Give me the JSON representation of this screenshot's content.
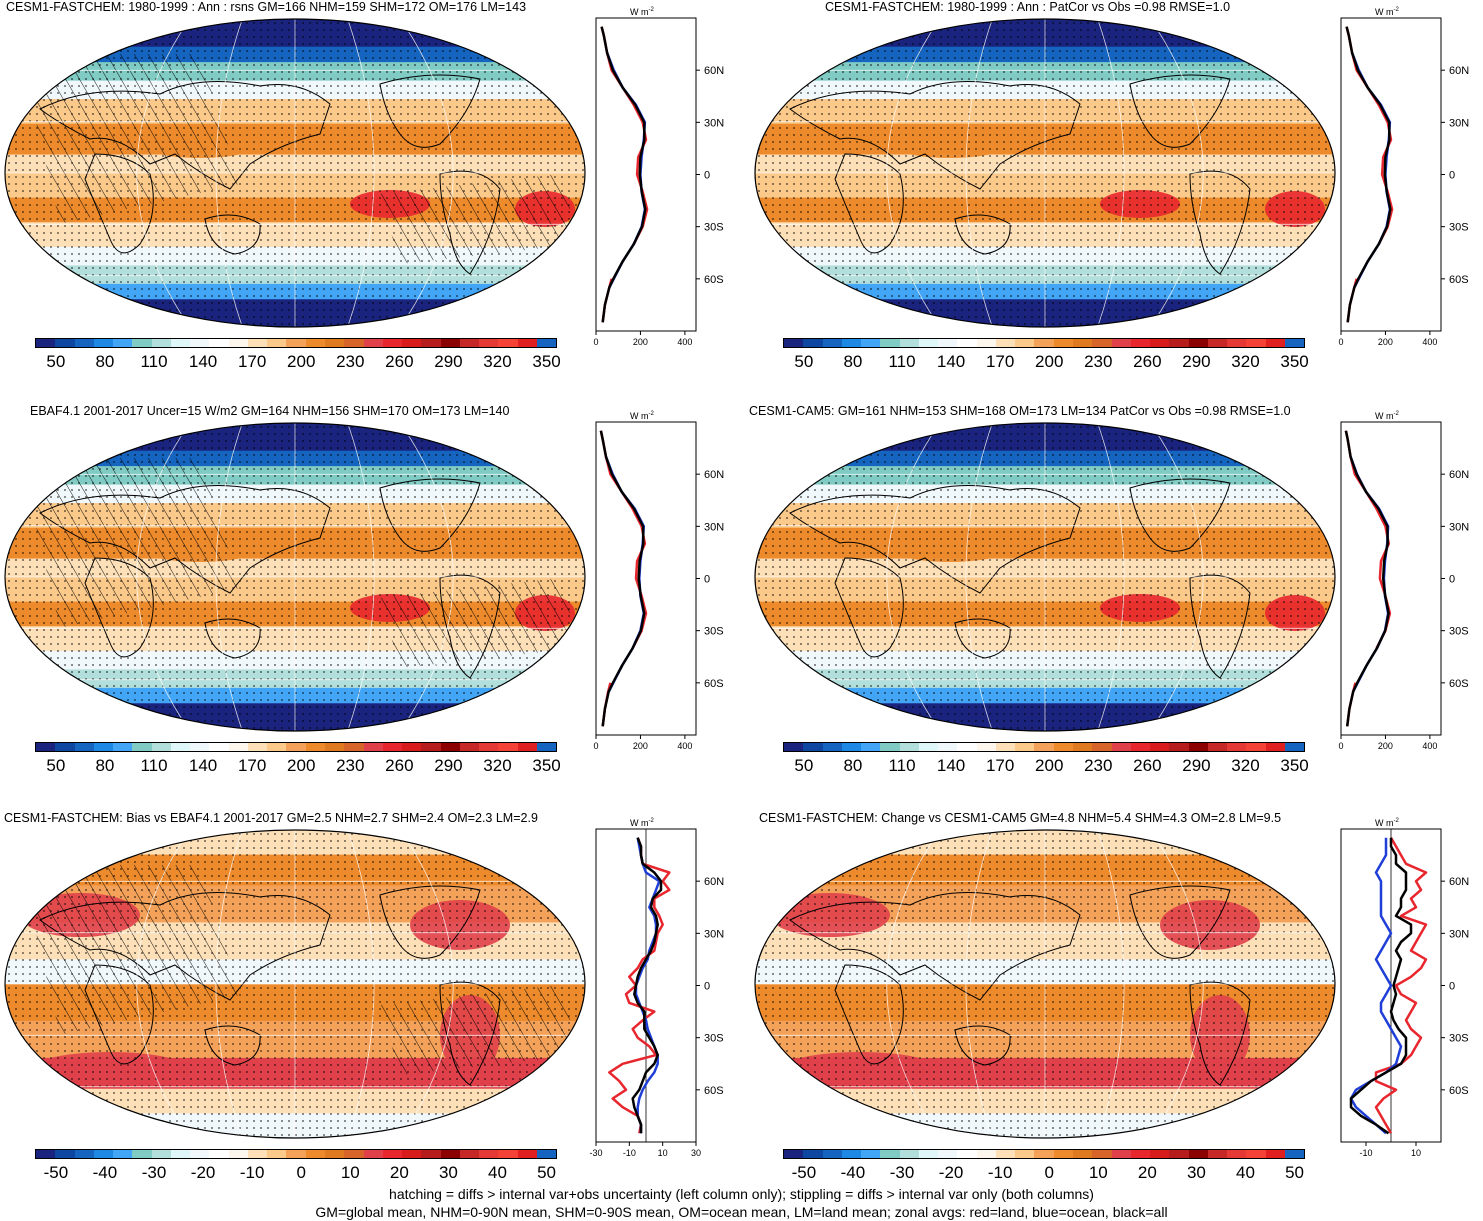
{
  "colorbar_abs": {
    "labels": [
      "50",
      "80",
      "110",
      "140",
      "170",
      "200",
      "230",
      "260",
      "290",
      "320",
      "350"
    ],
    "colors": [
      "#1a237e",
      "#0d47a1",
      "#1565c0",
      "#1e88e5",
      "#42a5f5",
      "#80cbc4",
      "#b2dfdb",
      "#e0f7fa",
      "#f1f8fb",
      "#ffffff",
      "#fdf6ec",
      "#fde0b8",
      "#fbc98a",
      "#f4a259",
      "#ec8a2c",
      "#e07a20",
      "#d7652a",
      "#e0404a",
      "#e8262e",
      "#d81b1b",
      "#b71c1c",
      "#8b0000",
      "#c62828",
      "#e53935",
      "#f44336",
      "#e02020",
      "#1565c0"
    ]
  },
  "colorbar_diff": {
    "labels": [
      "-50",
      "-40",
      "-30",
      "-20",
      "-10",
      "0",
      "10",
      "20",
      "30",
      "40",
      "50"
    ],
    "colors": [
      "#1a237e",
      "#0d47a1",
      "#1565c0",
      "#1e88e5",
      "#42a5f5",
      "#80cbc4",
      "#b2dfdb",
      "#e0f7fa",
      "#f1f8fb",
      "#ffffff",
      "#fdf6ec",
      "#fde0b8",
      "#fbc98a",
      "#f4a259",
      "#ec8a2c",
      "#e07a20",
      "#d7652a",
      "#e0404a",
      "#e8262e",
      "#d81b1b",
      "#b71c1c",
      "#8b0000",
      "#c62828",
      "#e53935",
      "#f44336",
      "#e02020",
      "#1565c0"
    ]
  },
  "panels": [
    {
      "title": "CESM1-FASTCHEM: 1980-1999 : Ann : rsns GM=166 NHM=159 SHM=172 OM=176 LM=143",
      "kind": "abs",
      "hatch": true
    },
    {
      "title": "CESM1-FASTCHEM: 1980-1999 : Ann : PatCor vs Obs =0.98 RMSE=1.0",
      "kind": "abs",
      "hatch": false
    },
    {
      "title": "EBAF4.1 2001-2017 Uncer=15 W/m2 GM=164 NHM=156 SHM=170 OM=173 LM=140",
      "kind": "abs",
      "hatch": true
    },
    {
      "title": "CESM1-CAM5: GM=161 NHM=153 SHM=168 OM=173 LM=134 PatCor vs Obs =0.98 RMSE=1.0",
      "kind": "abs",
      "hatch": false
    },
    {
      "title": "CESM1-FASTCHEM: Bias vs EBAF4.1 2001-2017 GM=2.5 NHM=2.7 SHM=2.4 OM=2.3 LM=2.9",
      "kind": "diff",
      "hatch": true
    },
    {
      "title": "CESM1-FASTCHEM: Change vs CESM1-CAM5 GM=4.8 NHM=5.4 SHM=4.3 OM=2.8 LM=9.5",
      "kind": "diff",
      "hatch": false
    }
  ],
  "zonal_unit": "W m",
  "zonal_unit_exp": "-2",
  "lat_labels": [
    "60N",
    "30N",
    "0",
    "30S",
    "60S"
  ],
  "footer": {
    "line1": "hatching = diffs > internal var+obs uncertainty (left column only); stippling = diffs > internal var only (both columns)",
    "line2": "GM=global mean, NHM=0-90N mean, SHM=0-90S mean, OM=ocean mean, LM=land mean; zonal avgs: red=land, blue=ocean, black=all"
  },
  "chart_data": [
    {
      "type": "line",
      "title": "CESM1-FASTCHEM: 1980-1999 : Ann : rsns GM=166 NHM=159 SHM=172 OM=176 LM=143",
      "xlabel": "W m-2",
      "xlim": [
        0,
        450
      ],
      "x_ticks": [
        "0",
        "200",
        "400"
      ],
      "y_ticks": [
        "60N",
        "30N",
        "0",
        "30S",
        "60S"
      ],
      "ylim": [
        -90,
        90
      ],
      "lat": [
        -85,
        -75,
        -65,
        -60,
        -50,
        -40,
        -30,
        -20,
        -10,
        0,
        10,
        20,
        30,
        40,
        50,
        60,
        70,
        80,
        85
      ],
      "series": [
        {
          "name": "land",
          "values": [
            30,
            40,
            60,
            70,
            null,
            170,
            210,
            230,
            210,
            185,
            190,
            225,
            210,
            170,
            120,
            70,
            50,
            35,
            25
          ]
        },
        {
          "name": "ocean",
          "values": [
            null,
            null,
            60,
            80,
            120,
            170,
            205,
            220,
            205,
            200,
            205,
            215,
            220,
            180,
            120,
            80,
            50,
            null,
            null
          ]
        },
        {
          "name": "all",
          "values": [
            30,
            40,
            60,
            78,
            120,
            170,
            207,
            222,
            206,
            197,
            200,
            218,
            217,
            177,
            120,
            76,
            50,
            35,
            25
          ]
        }
      ]
    },
    {
      "type": "line",
      "title": "CESM1-FASTCHEM: 1980-1999 : Ann : PatCor vs Obs =0.98 RMSE=1.0",
      "xlabel": "W m-2",
      "xlim": [
        0,
        450
      ],
      "x_ticks": [
        "0",
        "200",
        "400"
      ],
      "y_ticks": [
        "60N",
        "30N",
        "0",
        "30S",
        "60S"
      ],
      "ylim": [
        -90,
        90
      ],
      "lat": [
        -85,
        -75,
        -65,
        -60,
        -50,
        -40,
        -30,
        -20,
        -10,
        0,
        10,
        20,
        30,
        40,
        50,
        60,
        70,
        80,
        85
      ],
      "series": [
        {
          "name": "land",
          "values": [
            30,
            40,
            60,
            70,
            null,
            170,
            210,
            230,
            210,
            185,
            190,
            225,
            210,
            170,
            120,
            70,
            50,
            35,
            25
          ]
        },
        {
          "name": "ocean",
          "values": [
            null,
            null,
            60,
            80,
            120,
            170,
            205,
            220,
            205,
            200,
            205,
            215,
            220,
            180,
            120,
            80,
            50,
            null,
            null
          ]
        },
        {
          "name": "all",
          "values": [
            30,
            40,
            60,
            78,
            120,
            170,
            207,
            222,
            206,
            197,
            200,
            218,
            217,
            177,
            120,
            76,
            50,
            35,
            25
          ]
        }
      ]
    },
    {
      "type": "line",
      "title": "EBAF4.1 2001-2017 Uncer=15 W/m2 GM=164 NHM=156 SHM=170 OM=173 LM=140",
      "xlabel": "W m-2",
      "xlim": [
        0,
        450
      ],
      "x_ticks": [
        "0",
        "200",
        "400"
      ],
      "y_ticks": [
        "60N",
        "30N",
        "0",
        "30S",
        "60S"
      ],
      "ylim": [
        -90,
        90
      ],
      "lat": [
        -85,
        -75,
        -65,
        -60,
        -50,
        -40,
        -30,
        -20,
        -10,
        0,
        10,
        20,
        30,
        40,
        50,
        60,
        70,
        80,
        85
      ],
      "series": [
        {
          "name": "land",
          "values": [
            30,
            40,
            55,
            65,
            null,
            165,
            205,
            225,
            205,
            180,
            185,
            220,
            205,
            165,
            115,
            65,
            45,
            30,
            22
          ]
        },
        {
          "name": "ocean",
          "values": [
            null,
            null,
            58,
            78,
            118,
            165,
            200,
            215,
            200,
            195,
            200,
            210,
            215,
            175,
            115,
            75,
            45,
            null,
            null
          ]
        },
        {
          "name": "all",
          "values": [
            30,
            40,
            57,
            76,
            118,
            165,
            202,
            217,
            201,
            192,
            196,
            213,
            212,
            172,
            115,
            72,
            45,
            30,
            22
          ]
        }
      ]
    },
    {
      "type": "line",
      "title": "CESM1-CAM5: GM=161 NHM=153 SHM=168 OM=173 LM=134 PatCor vs Obs =0.98 RMSE=1.0",
      "xlabel": "W m-2",
      "xlim": [
        0,
        450
      ],
      "x_ticks": [
        "0",
        "200",
        "400"
      ],
      "y_ticks": [
        "60N",
        "30N",
        "0",
        "30S",
        "60S"
      ],
      "ylim": [
        -90,
        90
      ],
      "lat": [
        -85,
        -75,
        -65,
        -60,
        -50,
        -40,
        -30,
        -20,
        -10,
        0,
        10,
        20,
        30,
        40,
        50,
        60,
        70,
        80,
        85
      ],
      "series": [
        {
          "name": "land",
          "values": [
            28,
            38,
            55,
            65,
            null,
            160,
            200,
            220,
            200,
            175,
            180,
            215,
            200,
            160,
            112,
            62,
            43,
            30,
            22
          ]
        },
        {
          "name": "ocean",
          "values": [
            null,
            null,
            55,
            75,
            115,
            162,
            198,
            212,
            198,
            193,
            198,
            208,
            212,
            172,
            112,
            72,
            43,
            null,
            null
          ]
        },
        {
          "name": "all",
          "values": [
            28,
            38,
            55,
            73,
            115,
            162,
            199,
            214,
            199,
            190,
            194,
            210,
            209,
            169,
            112,
            70,
            43,
            30,
            22
          ]
        }
      ]
    },
    {
      "type": "line",
      "title": "CESM1-FASTCHEM: Bias vs EBAF4.1 2001-2017 GM=2.5 NHM=2.7 SHM=2.4 OM=2.3 LM=2.9",
      "xlabel": "W m-2",
      "xlim": [
        -30,
        30
      ],
      "x_ticks": [
        "-30",
        "-10",
        "10",
        "30"
      ],
      "y_ticks": [
        "60N",
        "30N",
        "0",
        "30S",
        "60S"
      ],
      "ylim": [
        -90,
        90
      ],
      "lat": [
        -85,
        -80,
        -75,
        -70,
        -65,
        -60,
        -55,
        -50,
        -45,
        -40,
        -35,
        -30,
        -25,
        -20,
        -15,
        -10,
        -5,
        0,
        5,
        10,
        15,
        20,
        25,
        30,
        35,
        40,
        45,
        50,
        55,
        60,
        65,
        70,
        75,
        80,
        85
      ],
      "series": [
        {
          "name": "land",
          "values": [
            -4,
            -3,
            -5,
            -14,
            -20,
            -12,
            -16,
            -22,
            -14,
            6,
            2,
            -5,
            -8,
            -2,
            5,
            -10,
            -12,
            -6,
            -10,
            -5,
            -2,
            5,
            6,
            7,
            10,
            8,
            5,
            5,
            14,
            10,
            14,
            -2,
            -3,
            -3,
            -5
          ]
        },
        {
          "name": "ocean",
          "values": [
            -3,
            -3,
            -5,
            -5,
            -4,
            -2,
            1,
            5,
            7,
            7,
            5,
            3,
            1,
            0,
            -2,
            -4,
            -6,
            -6,
            -4,
            -2,
            1,
            2,
            4,
            6,
            6,
            5,
            2,
            4,
            6,
            8,
            0,
            -2,
            -3,
            -4,
            -5
          ]
        },
        {
          "name": "all",
          "values": [
            -3,
            -3,
            -5,
            -7,
            -8,
            -4,
            -2,
            0,
            5,
            7,
            5,
            2,
            -1,
            -1,
            -1,
            -5,
            -7,
            -6,
            -5,
            -3,
            0,
            3,
            5,
            6,
            7,
            6,
            3,
            4,
            9,
            9,
            5,
            -2,
            -3,
            -3,
            -5
          ]
        }
      ]
    },
    {
      "type": "line",
      "title": "CESM1-FASTCHEM: Change vs CESM1-CAM5 GM=4.8 NHM=5.4 SHM=4.3 OM=2.8 LM=9.5",
      "xlabel": "W m-2",
      "xlim": [
        -20,
        20
      ],
      "x_ticks": [
        "-10",
        "10"
      ],
      "y_ticks": [
        "60N",
        "30N",
        "0",
        "30S",
        "60S"
      ],
      "ylim": [
        -90,
        90
      ],
      "lat": [
        -85,
        -80,
        -75,
        -70,
        -65,
        -60,
        -55,
        -50,
        -45,
        -40,
        -35,
        -30,
        -25,
        -20,
        -15,
        -10,
        -5,
        0,
        5,
        10,
        15,
        20,
        25,
        30,
        35,
        40,
        45,
        50,
        55,
        60,
        65,
        70,
        75,
        80,
        85
      ],
      "series": [
        {
          "name": "land",
          "values": [
            0,
            -2,
            -4,
            -6,
            -3,
            2,
            -6,
            -6,
            4,
            8,
            10,
            12,
            8,
            6,
            8,
            10,
            4,
            2,
            8,
            12,
            14,
            8,
            10,
            12,
            14,
            4,
            10,
            8,
            12,
            10,
            14,
            6,
            4,
            2,
            0
          ]
        },
        {
          "name": "ocean",
          "values": [
            -2,
            -6,
            -10,
            -14,
            -16,
            -14,
            -8,
            -2,
            2,
            3,
            4,
            2,
            0,
            -2,
            -4,
            -4,
            -2,
            0,
            -2,
            -4,
            -6,
            -4,
            -2,
            0,
            -2,
            -4,
            -4,
            -4,
            -4,
            -4,
            -6,
            -4,
            -2,
            -2,
            -2
          ]
        },
        {
          "name": "all",
          "values": [
            -1,
            -6,
            -12,
            -16,
            -16,
            -12,
            -8,
            -2,
            4,
            6,
            6,
            6,
            3,
            1,
            0,
            1,
            2,
            1,
            2,
            3,
            4,
            2,
            4,
            8,
            8,
            2,
            4,
            4,
            6,
            6,
            6,
            2,
            2,
            0,
            0
          ]
        }
      ]
    }
  ]
}
